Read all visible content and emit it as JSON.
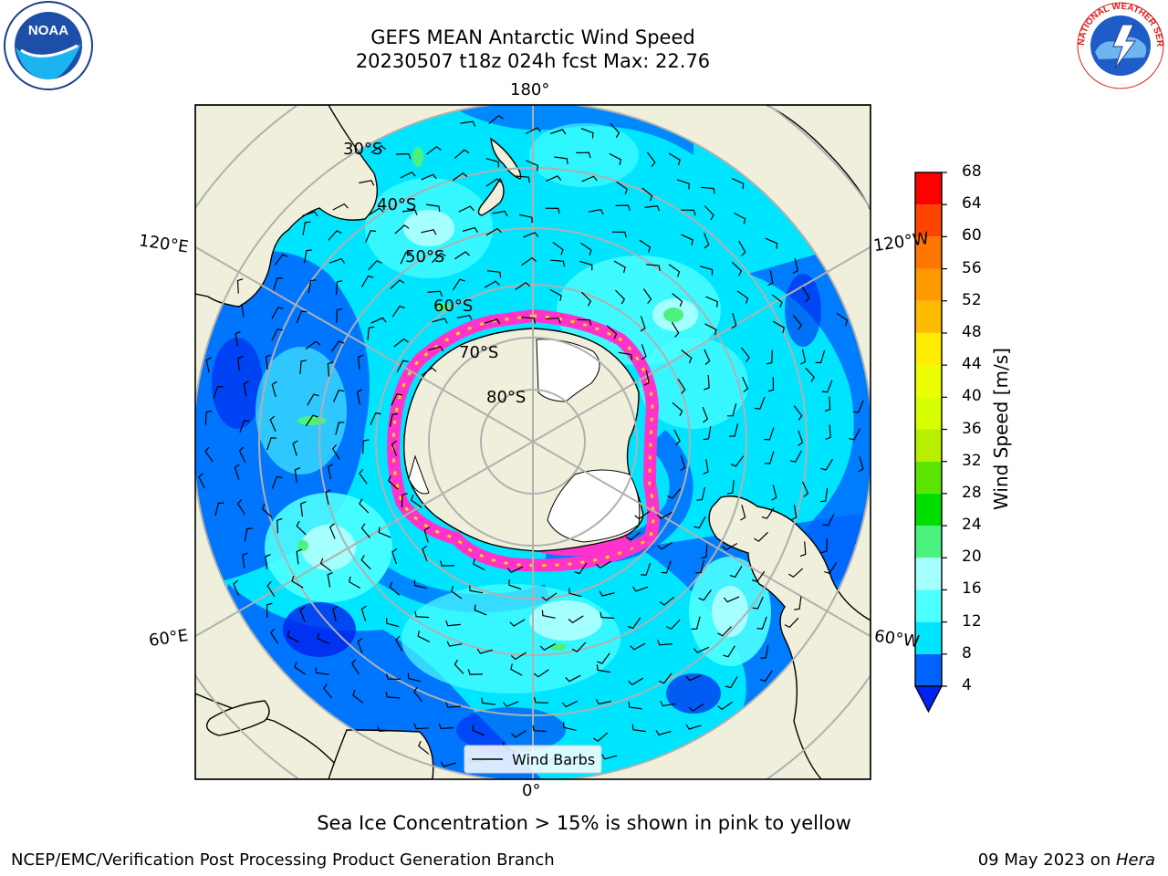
{
  "header": {
    "title_line1": "GEFS MEAN Antarctic Wind Speed",
    "title_line2": "20230507 t18z 024h fcst   Max: 22.76"
  },
  "map": {
    "longitude_labels": {
      "top": "180°",
      "bottom": "0°",
      "upper_left": "120°E",
      "lower_left": "60°E",
      "upper_right": "120°W",
      "lower_right": "60°W"
    },
    "latitude_labels": [
      "30°S",
      "40°S",
      "50°S",
      "60°S",
      "70°S",
      "80°S"
    ],
    "legend": {
      "wind_barbs": "Wind Barbs"
    },
    "colors": {
      "land": "#efefdb",
      "ocean_base": "#00ffff",
      "sea_ice": "#ff33cc",
      "grid": "#b0b0b0"
    }
  },
  "colorbar": {
    "label": "Wind Speed [m/s]",
    "ticks": [
      "4",
      "8",
      "12",
      "16",
      "20",
      "24",
      "28",
      "32",
      "36",
      "40",
      "44",
      "48",
      "52",
      "56",
      "60",
      "64",
      "68"
    ],
    "bins": [
      {
        "from": 4,
        "to": 8,
        "color": "#0063ff"
      },
      {
        "from": 8,
        "to": 12,
        "color": "#00e5ff"
      },
      {
        "from": 12,
        "to": 16,
        "color": "#4dffff"
      },
      {
        "from": 16,
        "to": 20,
        "color": "#a6ffff"
      },
      {
        "from": 20,
        "to": 24,
        "color": "#4bf27d"
      },
      {
        "from": 24,
        "to": 28,
        "color": "#00dd00"
      },
      {
        "from": 28,
        "to": 32,
        "color": "#5ae400"
      },
      {
        "from": 32,
        "to": 36,
        "color": "#b8ee00"
      },
      {
        "from": 36,
        "to": 40,
        "color": "#d8ff00"
      },
      {
        "from": 40,
        "to": 44,
        "color": "#ecff00"
      },
      {
        "from": 44,
        "to": 48,
        "color": "#ffee00"
      },
      {
        "from": 48,
        "to": 52,
        "color": "#ffbb00"
      },
      {
        "from": 52,
        "to": 56,
        "color": "#ff9900"
      },
      {
        "from": 56,
        "to": 60,
        "color": "#ff7700"
      },
      {
        "from": 60,
        "to": 64,
        "color": "#ff4400"
      },
      {
        "from": 64,
        "to": 68,
        "color": "#ff0000"
      }
    ],
    "under_color": "#0022ee"
  },
  "caption": "Sea Ice Concentration > 15% is shown in pink to yellow",
  "footer": {
    "left": "NCEP/EMC/Verification Post Processing Product Generation Branch",
    "right_date": "09 May 2023 on ",
    "right_machine": "Hera"
  },
  "logos": {
    "noaa": "NOAA",
    "nws": "NATIONAL WEATHER SERVICE"
  }
}
